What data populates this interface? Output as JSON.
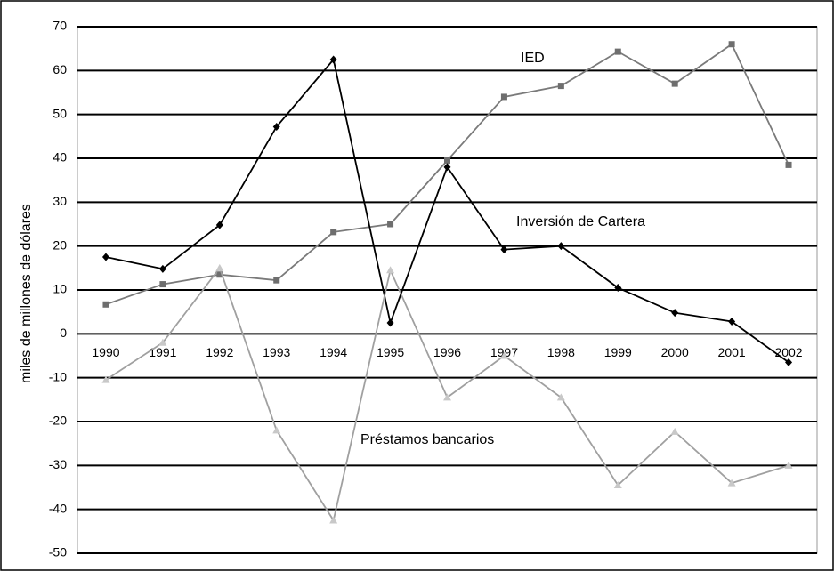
{
  "chart_data": {
    "type": "line",
    "ylabel": "miles de millones de dólares",
    "categories": [
      "1990",
      "1991",
      "1992",
      "1993",
      "1994",
      "1995",
      "1996",
      "1997",
      "1998",
      "1999",
      "2000",
      "2001",
      "2002"
    ],
    "series": [
      {
        "name": "IED",
        "color": "#7a7a7a",
        "marker": "square",
        "values": [
          6.7,
          11.3,
          13.5,
          12.2,
          23.2,
          25,
          39.5,
          54,
          56.5,
          64.3,
          57,
          66,
          38.5
        ]
      },
      {
        "name": "Inversión de Cartera",
        "color": "#000000",
        "marker": "diamond",
        "values": [
          17.5,
          14.8,
          24.8,
          47.2,
          62.5,
          2.5,
          38,
          19.2,
          20,
          10.5,
          4.8,
          2.8,
          -6.5
        ]
      },
      {
        "name": "Préstamos bancarios",
        "color": "#a0a0a0",
        "marker": "triangle",
        "values": [
          -10.5,
          -2,
          15,
          -22,
          -42.5,
          14.5,
          -14.5,
          -5,
          -14.5,
          -34.5,
          -22.3,
          -34,
          -30
        ]
      }
    ],
    "ylim": [
      -50,
      70
    ],
    "yticks": [
      -50,
      -40,
      -30,
      -20,
      -10,
      0,
      10,
      20,
      30,
      40,
      50,
      60,
      70
    ],
    "grid": true
  }
}
